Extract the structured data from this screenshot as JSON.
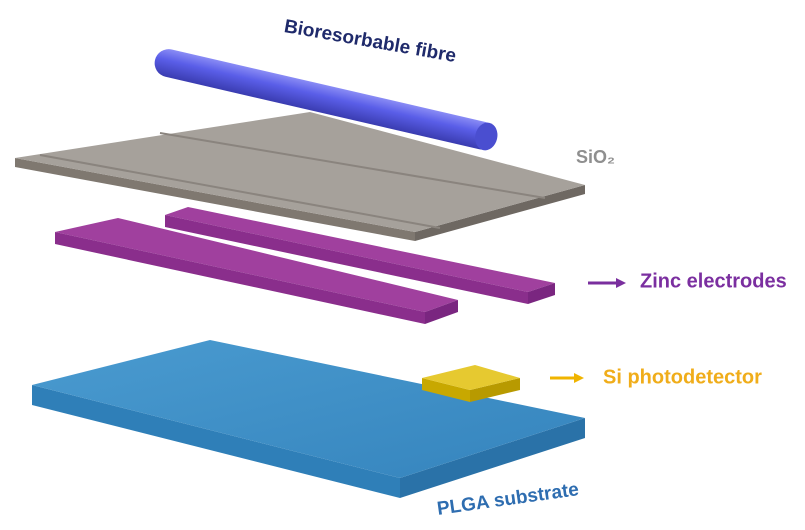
{
  "labels": {
    "fibre": "Bioresorbable fibre",
    "oxide": "SiO₂",
    "electrodes": "Zinc electrodes",
    "detector": "Si photodetector",
    "substrate": "PLGA substrate"
  }
}
